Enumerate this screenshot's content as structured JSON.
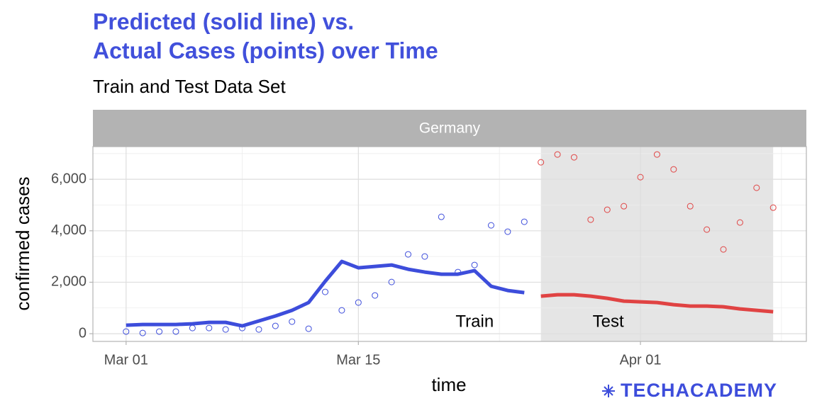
{
  "chart_data": {
    "type": "line",
    "title": [
      "Predicted (solid line) vs.",
      "Actual Cases (points) over Time"
    ],
    "subtitle": "Train and Test Data Set",
    "facet": "Germany",
    "x_label": "time",
    "y_label": "confirmed cases",
    "xlim": [
      "Feb 28",
      "Apr 11"
    ],
    "xticks": [
      "Mar 01",
      "Mar 15",
      "Apr 01"
    ],
    "ylim": [
      -300,
      7270
    ],
    "yticks": [
      0,
      {
        "value": 2000,
        "label": "2,000"
      },
      {
        "value": 4000,
        "label": "4,000"
      },
      {
        "value": 6000,
        "label": "6,000"
      }
    ],
    "grid": true,
    "series": [
      {
        "name": "Train",
        "color": "#3d4ddb",
        "x": [
          "Mar 01",
          "Mar 02",
          "Mar 03",
          "Mar 04",
          "Mar 05",
          "Mar 06",
          "Mar 07",
          "Mar 08",
          "Mar 09",
          "Mar 10",
          "Mar 11",
          "Mar 12",
          "Mar 13",
          "Mar 14",
          "Mar 15",
          "Mar 16",
          "Mar 17",
          "Mar 18",
          "Mar 19",
          "Mar 20",
          "Mar 21",
          "Mar 22",
          "Mar 23",
          "Mar 24",
          "Mar 25"
        ],
        "values": [
          83,
          28,
          83,
          83,
          220,
          220,
          165,
          220,
          165,
          303,
          468,
          193,
          1624,
          908,
          1211,
          1486,
          2009,
          3083,
          3000,
          4541,
          2395,
          2670,
          4211,
          3964,
          4349
        ],
        "predicted": [
          330,
          358,
          358,
          358,
          385,
          440,
          440,
          303,
          495,
          688,
          908,
          1211,
          2037,
          2808,
          2560,
          2615,
          2670,
          2505,
          2395,
          2312,
          2312,
          2450,
          1844,
          1679,
          1596
        ]
      },
      {
        "name": "Test",
        "color": "#e04343",
        "x": [
          "Mar 26",
          "Mar 27",
          "Mar 28",
          "Mar 29",
          "Mar 30",
          "Mar 31",
          "Apr 01",
          "Apr 02",
          "Apr 03",
          "Apr 04",
          "Apr 05",
          "Apr 06",
          "Apr 07",
          "Apr 08",
          "Apr 09"
        ],
        "values": [
          6661,
          6964,
          6854,
          4432,
          4817,
          4954,
          6083,
          6964,
          6386,
          4954,
          4046,
          3275,
          4321,
          5670,
          4899
        ],
        "predicted": [
          1459,
          1514,
          1514,
          1459,
          1376,
          1266,
          1239,
          1211,
          1128,
          1073,
          1073,
          1046,
          963,
          908,
          853
        ]
      }
    ]
  },
  "logo": "TECHACADEMY"
}
